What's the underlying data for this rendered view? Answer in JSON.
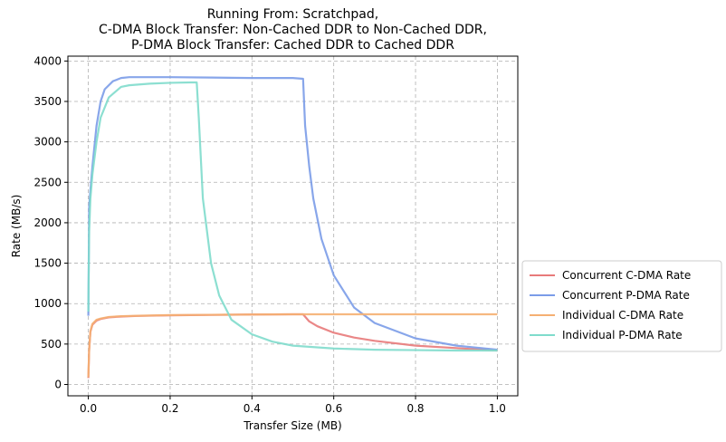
{
  "chart_data": {
    "type": "line",
    "title_lines": [
      "Running From: Scratchpad,",
      "C-DMA Block Transfer: Non-Cached DDR to Non-Cached DDR,",
      "P-DMA Block Transfer: Cached DDR to Cached DDR"
    ],
    "xlabel": "Transfer Size (MB)",
    "ylabel": "Rate (MB/s)",
    "xlim": [
      -0.05,
      1.05
    ],
    "ylim": [
      -140,
      4060
    ],
    "xticks": [
      0.0,
      0.2,
      0.4,
      0.6,
      0.8,
      1.0
    ],
    "xtick_labels": [
      "0.0",
      "0.2",
      "0.4",
      "0.6",
      "0.8",
      "1.0"
    ],
    "yticks": [
      0,
      500,
      1000,
      1500,
      2000,
      2500,
      3000,
      3500,
      4000
    ],
    "ytick_labels": [
      "0",
      "500",
      "1000",
      "1500",
      "2000",
      "2500",
      "3000",
      "3500",
      "4000"
    ],
    "grid": true,
    "legend_position": "outside-right-bottom",
    "series": [
      {
        "name": "Concurrent C-DMA Rate",
        "color": "#e87a7a",
        "x": [
          0.0,
          0.002,
          0.005,
          0.01,
          0.02,
          0.03,
          0.05,
          0.08,
          0.12,
          0.2,
          0.3,
          0.4,
          0.5,
          0.525,
          0.54,
          0.56,
          0.6,
          0.65,
          0.7,
          0.8,
          0.9,
          1.0
        ],
        "y": [
          80,
          420,
          650,
          740,
          790,
          810,
          830,
          840,
          848,
          855,
          860,
          865,
          868,
          868,
          780,
          720,
          640,
          580,
          540,
          480,
          450,
          420
        ]
      },
      {
        "name": "Concurrent P-DMA Rate",
        "color": "#7b9ce8",
        "x": [
          0.0,
          0.002,
          0.005,
          0.01,
          0.02,
          0.03,
          0.04,
          0.06,
          0.08,
          0.1,
          0.2,
          0.3,
          0.4,
          0.5,
          0.525,
          0.53,
          0.54,
          0.55,
          0.57,
          0.6,
          0.65,
          0.7,
          0.8,
          0.9,
          1.0
        ],
        "y": [
          850,
          2200,
          2400,
          2700,
          3200,
          3500,
          3650,
          3750,
          3790,
          3800,
          3800,
          3795,
          3790,
          3790,
          3780,
          3200,
          2700,
          2300,
          1800,
          1350,
          950,
          760,
          570,
          480,
          430
        ]
      },
      {
        "name": "Individual C-DMA Rate",
        "color": "#f5b072",
        "x": [
          0.0,
          0.002,
          0.005,
          0.01,
          0.02,
          0.03,
          0.05,
          0.08,
          0.12,
          0.2,
          0.3,
          0.4,
          0.5,
          0.6,
          0.7,
          0.8,
          0.9,
          1.0
        ],
        "y": [
          90,
          430,
          660,
          750,
          800,
          815,
          835,
          845,
          850,
          858,
          862,
          865,
          868,
          868,
          868,
          868,
          868,
          868
        ]
      },
      {
        "name": "Individual P-DMA Rate",
        "color": "#7fdccc",
        "x": [
          0.0,
          0.002,
          0.005,
          0.01,
          0.02,
          0.03,
          0.05,
          0.08,
          0.1,
          0.15,
          0.2,
          0.25,
          0.265,
          0.27,
          0.28,
          0.3,
          0.32,
          0.35,
          0.4,
          0.45,
          0.5,
          0.6,
          0.7,
          0.8,
          0.9,
          1.0
        ],
        "y": [
          900,
          1900,
          2300,
          2600,
          3000,
          3300,
          3550,
          3680,
          3700,
          3720,
          3730,
          3735,
          3735,
          3300,
          2300,
          1500,
          1100,
          800,
          620,
          530,
          480,
          445,
          430,
          425,
          420,
          420
        ]
      }
    ]
  }
}
